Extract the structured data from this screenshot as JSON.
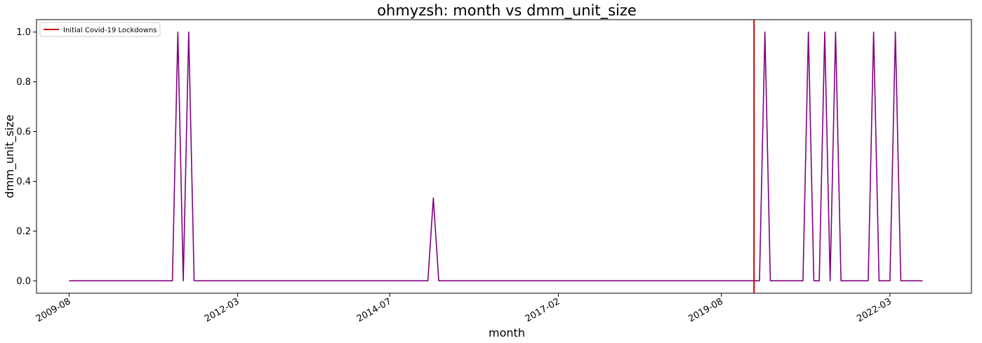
{
  "chart_data": {
    "type": "line",
    "title": "ohmyzsh: month vs dmm_unit_size",
    "xlabel": "month",
    "ylabel": "dmm_unit_size",
    "ylim": [
      -0.05,
      1.05
    ],
    "xlim": [
      "2009-02",
      "2023-06"
    ],
    "grid": false,
    "legend_placement": "top-left",
    "x_tick_labels": [
      "2009-08",
      "2012-03",
      "2014-07",
      "2017-02",
      "2019-08",
      "2022-03"
    ],
    "y_tick_labels": [
      "0.0",
      "0.2",
      "0.4",
      "0.6",
      "0.8",
      "1.0"
    ],
    "y_ticks": [
      0.0,
      0.2,
      0.4,
      0.6,
      0.8,
      1.0
    ],
    "series": [
      {
        "color": "#800080",
        "points": [
          [
            "2009-08",
            0
          ],
          [
            "2011-03",
            0
          ],
          [
            "2011-04",
            1
          ],
          [
            "2011-05",
            0
          ],
          [
            "2011-06",
            1
          ],
          [
            "2011-07",
            0
          ],
          [
            "2015-02",
            0
          ],
          [
            "2015-03",
            0.333
          ],
          [
            "2015-04",
            0
          ],
          [
            "2020-03",
            0
          ],
          [
            "2020-04",
            1
          ],
          [
            "2020-05",
            0
          ],
          [
            "2020-11",
            0
          ],
          [
            "2020-12",
            1
          ],
          [
            "2021-01",
            0
          ],
          [
            "2021-02",
            0
          ],
          [
            "2021-03",
            1
          ],
          [
            "2021-04",
            0
          ],
          [
            "2021-05",
            1
          ],
          [
            "2021-06",
            0
          ],
          [
            "2021-11",
            0
          ],
          [
            "2021-12",
            1
          ],
          [
            "2022-01",
            0
          ],
          [
            "2022-03",
            0
          ],
          [
            "2022-04",
            1
          ],
          [
            "2022-05",
            0
          ],
          [
            "2022-09",
            0
          ]
        ]
      }
    ],
    "reference_line": {
      "name": "Initial Covid-19 Lockdowns",
      "x": "2020-02",
      "color": "#cc0000"
    }
  }
}
